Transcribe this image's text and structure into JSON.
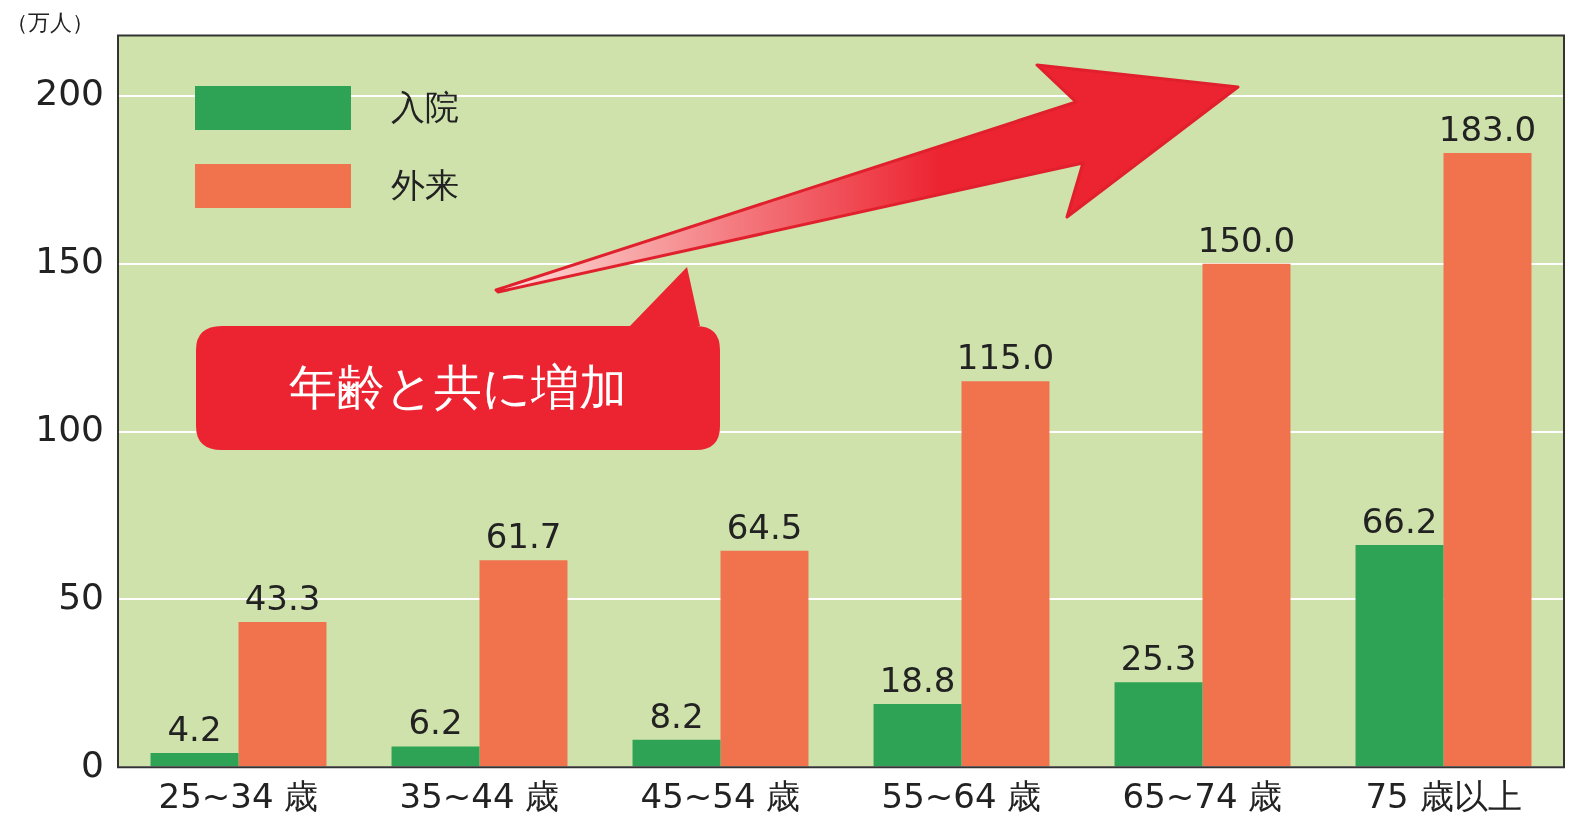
{
  "chart_data": {
    "type": "bar",
    "ylabel": "（万人）",
    "categories": [
      "25~34 歳",
      "35~44 歳",
      "45~54 歳",
      "55~64 歳",
      "65~74 歳",
      "75 歳以上"
    ],
    "series": [
      {
        "name": "入院",
        "color": "#2ea356",
        "values": [
          4.2,
          6.2,
          8.2,
          18.8,
          25.3,
          66.2
        ]
      },
      {
        "name": "外来",
        "color": "#f0734e",
        "values": [
          43.3,
          61.7,
          64.5,
          115.0,
          150.0,
          183.0
        ]
      }
    ],
    "value_labels": [
      [
        "4.2",
        "6.2",
        "8.2",
        "18.8",
        "25.3",
        "66.2"
      ],
      [
        "43.3",
        "61.7",
        "64.5",
        "115.0",
        "150.0",
        "183.0"
      ]
    ],
    "ylim": [
      0,
      218
    ],
    "yticks": [
      0,
      50,
      100,
      150,
      200
    ],
    "grid": "y",
    "legend": "top left",
    "annotations": [
      "年齢と共に増加"
    ]
  }
}
